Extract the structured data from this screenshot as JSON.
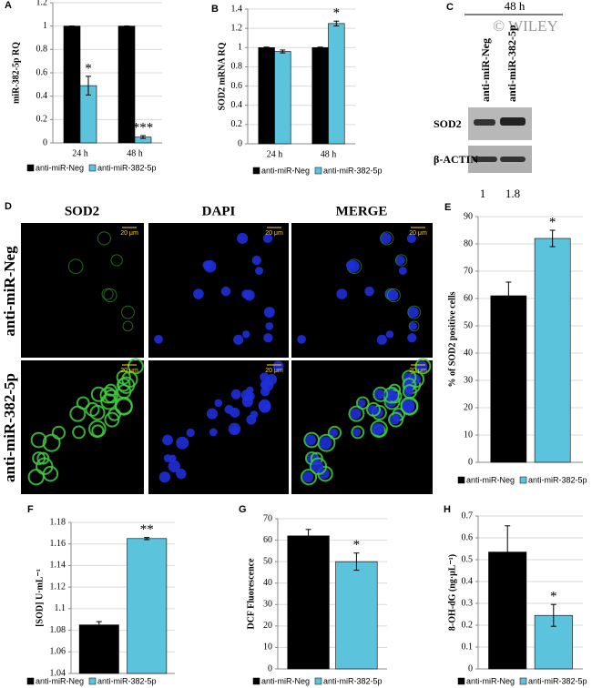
{
  "chart_data": [
    {
      "type": "bar",
      "panel": "A",
      "ylabel": "miR-382-5p RQ",
      "categories": [
        "24 h",
        "48 h"
      ],
      "series": [
        {
          "name": "anti-miR-Neg",
          "color": "#000000",
          "values": [
            1,
            1
          ],
          "errors": [
            0,
            0
          ],
          "annotations": [
            null,
            null
          ]
        },
        {
          "name": "anti-miR-382-5p",
          "color": "#5bc3dc",
          "values": [
            0.49,
            0.05
          ],
          "errors": [
            0.08,
            0.012
          ],
          "annotations": [
            "*",
            "***"
          ]
        }
      ],
      "ylim": [
        0,
        1.2
      ],
      "yticks": [
        0,
        0.2,
        0.4,
        0.6,
        0.8,
        1,
        1.2
      ],
      "grid": true
    },
    {
      "type": "bar",
      "panel": "B",
      "ylabel": "SOD2 mRNA RQ",
      "categories": [
        "24 h",
        "48 h"
      ],
      "series": [
        {
          "name": "anti-miR-Neg",
          "color": "#000000",
          "values": [
            1,
            1
          ],
          "errors": [
            0.005,
            0.005
          ],
          "annotations": [
            null,
            null
          ]
        },
        {
          "name": "anti-miR-382-5p",
          "color": "#5bc3dc",
          "values": [
            0.96,
            1.25
          ],
          "errors": [
            0.015,
            0.025
          ],
          "annotations": [
            null,
            "*"
          ]
        }
      ],
      "ylim": [
        0,
        1.4
      ],
      "yticks": [
        0,
        0.2,
        0.4,
        0.6,
        0.8,
        1,
        1.2,
        1.4
      ],
      "grid": true
    },
    {
      "type": "bar",
      "panel": "E",
      "ylabel": "% of SOD2 positive cells",
      "categories": [
        null
      ],
      "series": [
        {
          "name": "anti-miR-Neg",
          "color": "#000000",
          "values": [
            61
          ],
          "errors": [
            5
          ],
          "annotations": [
            null
          ]
        },
        {
          "name": "anti-miR-382-5p",
          "color": "#5bc3dc",
          "values": [
            82
          ],
          "errors": [
            3
          ],
          "annotations": [
            "*"
          ]
        }
      ],
      "ylim": [
        0,
        90
      ],
      "yticks": [
        0,
        10,
        20,
        30,
        40,
        50,
        60,
        70,
        80,
        90
      ],
      "grid": true
    },
    {
      "type": "bar",
      "panel": "F",
      "ylabel": "[SOD] U·mL⁻¹",
      "categories": [
        null
      ],
      "series": [
        {
          "name": "anti-miR-Neg",
          "color": "#000000",
          "values": [
            1.085
          ],
          "errors": [
            0.003
          ],
          "annotations": [
            null
          ]
        },
        {
          "name": "anti-miR-382-5p",
          "color": "#5bc3dc",
          "values": [
            1.165
          ],
          "errors": [
            0.001
          ],
          "annotations": [
            "**"
          ]
        }
      ],
      "ylim": [
        1.04,
        1.18
      ],
      "yticks": [
        1.04,
        1.06,
        1.08,
        1.1,
        1.12,
        1.14,
        1.16,
        1.18
      ],
      "grid": true
    },
    {
      "type": "bar",
      "panel": "G",
      "ylabel": "DCF Fluorescence",
      "categories": [
        null
      ],
      "series": [
        {
          "name": "anti-miR-Neg",
          "color": "#000000",
          "values": [
            62
          ],
          "errors": [
            3
          ],
          "annotations": [
            null
          ]
        },
        {
          "name": "anti-miR-382-5p",
          "color": "#5bc3dc",
          "values": [
            50
          ],
          "errors": [
            4
          ],
          "annotations": [
            "*"
          ]
        }
      ],
      "ylim": [
        0,
        70
      ],
      "yticks": [
        0,
        10,
        20,
        30,
        40,
        50,
        60,
        70
      ],
      "grid": true
    },
    {
      "type": "bar",
      "panel": "H",
      "ylabel": "8-OH-dG (ng·μL⁻¹)",
      "categories": [
        null
      ],
      "series": [
        {
          "name": "anti-miR-Neg",
          "color": "#000000",
          "values": [
            0.535
          ],
          "errors": [
            0.12
          ],
          "annotations": [
            null
          ]
        },
        {
          "name": "anti-miR-382-5p",
          "color": "#5bc3dc",
          "values": [
            0.245
          ],
          "errors": [
            0.05
          ],
          "annotations": [
            "*"
          ]
        }
      ],
      "ylim": [
        0,
        0.7
      ],
      "yticks": [
        0,
        0.1,
        0.2,
        0.3,
        0.4,
        0.5,
        0.6,
        0.7
      ],
      "grid": true
    }
  ],
  "blot": {
    "panel": "C",
    "time": "48 h",
    "watermark": "© WILEY",
    "lanes": [
      "anti-miR-Neg",
      "anti-miR-382-5p"
    ],
    "rows": [
      "SOD2",
      "β-ACTIN"
    ],
    "ratios": [
      1,
      1.8
    ]
  },
  "microscopy": {
    "panel": "D",
    "columns": [
      "SOD2",
      "DAPI",
      "MERGE"
    ],
    "rows": [
      "anti-miR-Neg",
      "anti-miR-382-5p"
    ],
    "scale_bar": "20 μm"
  }
}
